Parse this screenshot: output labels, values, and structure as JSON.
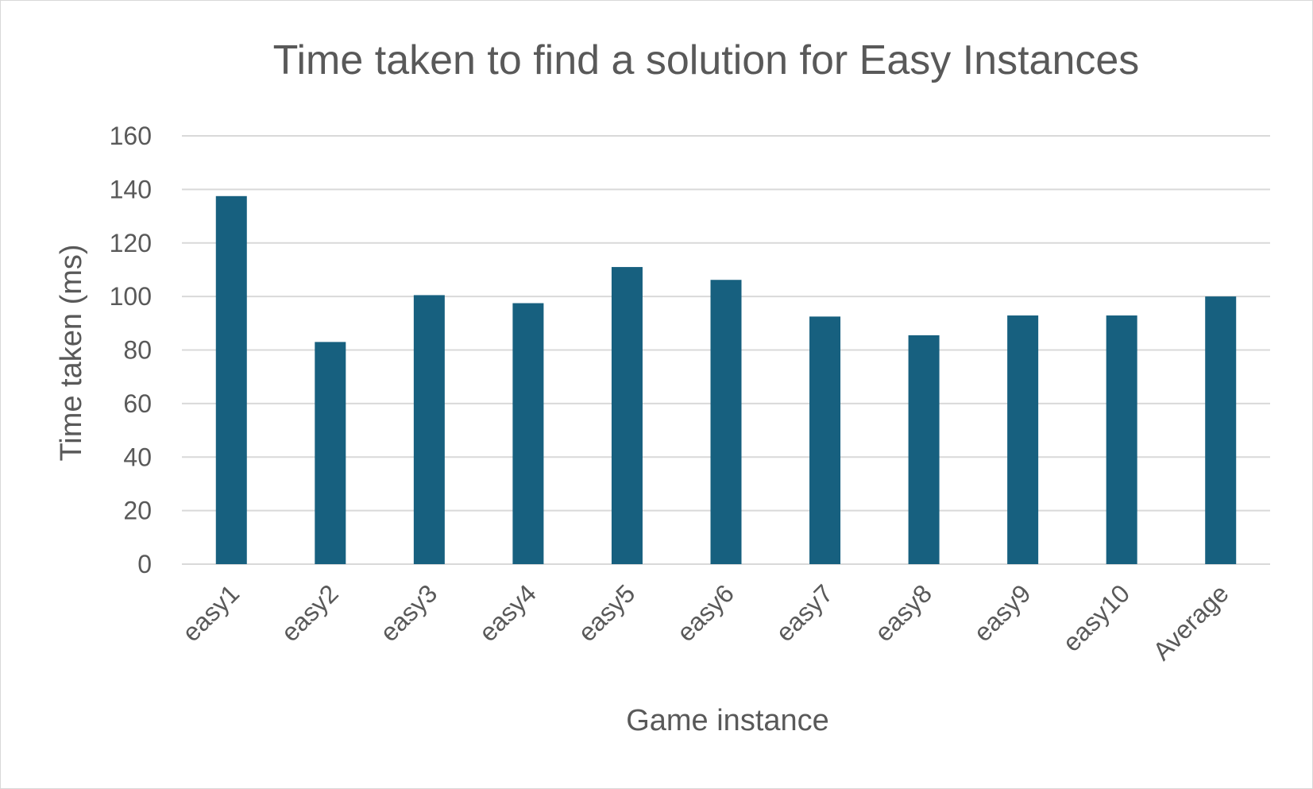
{
  "chart_data": {
    "type": "bar",
    "title": "Time taken to find a solution for Easy Instances",
    "xlabel": "Game instance",
    "ylabel": "Time taken (ms)",
    "categories": [
      "easy1",
      "easy2",
      "easy3",
      "easy4",
      "easy5",
      "easy6",
      "easy7",
      "easy8",
      "easy9",
      "easy10",
      "Average"
    ],
    "values": [
      137.5,
      83,
      100.5,
      97.5,
      111,
      106.2,
      92.5,
      85.5,
      92.9,
      92.9,
      100
    ],
    "ylim": [
      0,
      160
    ],
    "yticks": [
      "0",
      "20",
      "40",
      "60",
      "80",
      "100",
      "120",
      "140",
      "160"
    ],
    "grid": true,
    "legend": "none",
    "bar_color": "#17607f",
    "grid_color": "#d9d9d9"
  }
}
